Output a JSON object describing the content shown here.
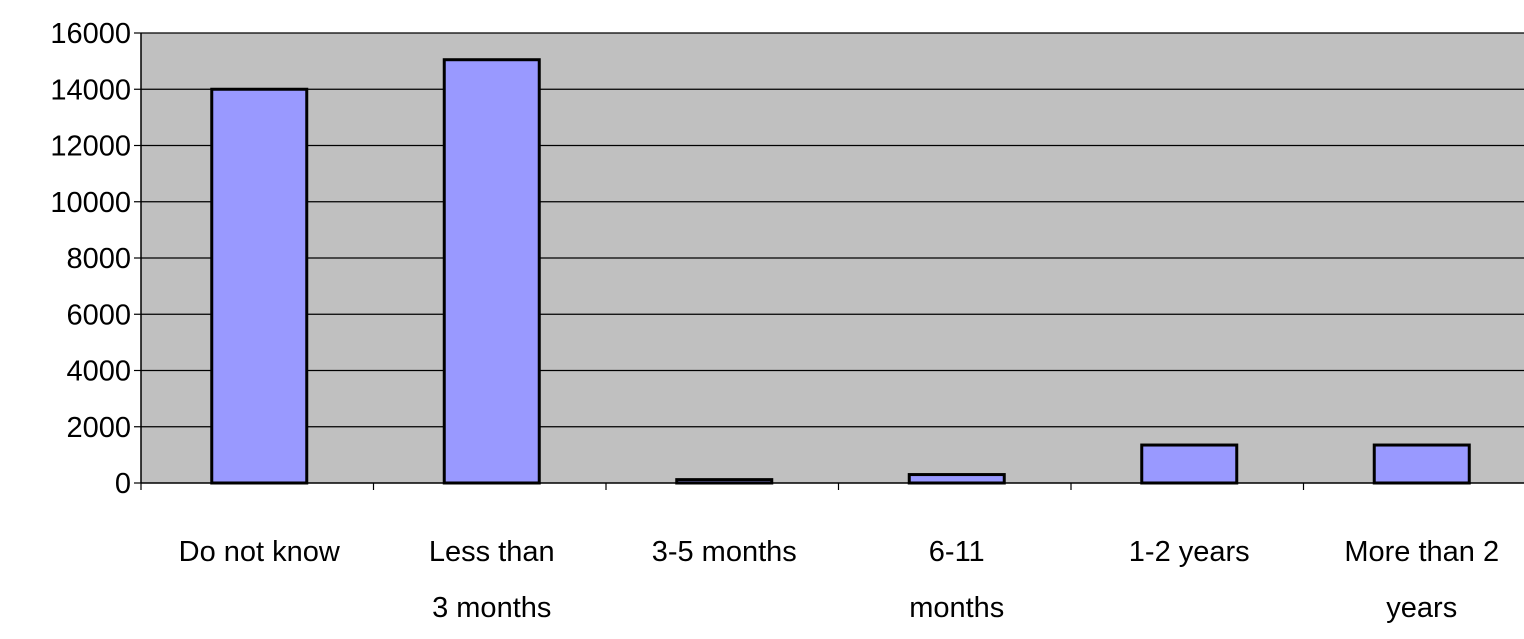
{
  "chart_data": {
    "type": "bar",
    "categories": [
      [
        "Do not know"
      ],
      [
        "Less than",
        "3 months"
      ],
      [
        "3-5 months"
      ],
      [
        "6-11",
        "months"
      ],
      [
        "1-2 years"
      ],
      [
        "More than 2",
        "years"
      ]
    ],
    "values": [
      14000,
      15050,
      120,
      300,
      1350,
      1350
    ],
    "ylim": [
      0,
      16000
    ],
    "yticks": [
      "0",
      "2000",
      "4000",
      "6000",
      "8000",
      "10000",
      "12000",
      "14000",
      "16000"
    ],
    "title": "",
    "xlabel": "",
    "ylabel": "",
    "grid": true,
    "legend": "none",
    "colors": {
      "bar_fill": "#9999ff",
      "bar_stroke": "#000000",
      "plot_bg": "#c0c0c0",
      "gridline": "#000000"
    }
  }
}
